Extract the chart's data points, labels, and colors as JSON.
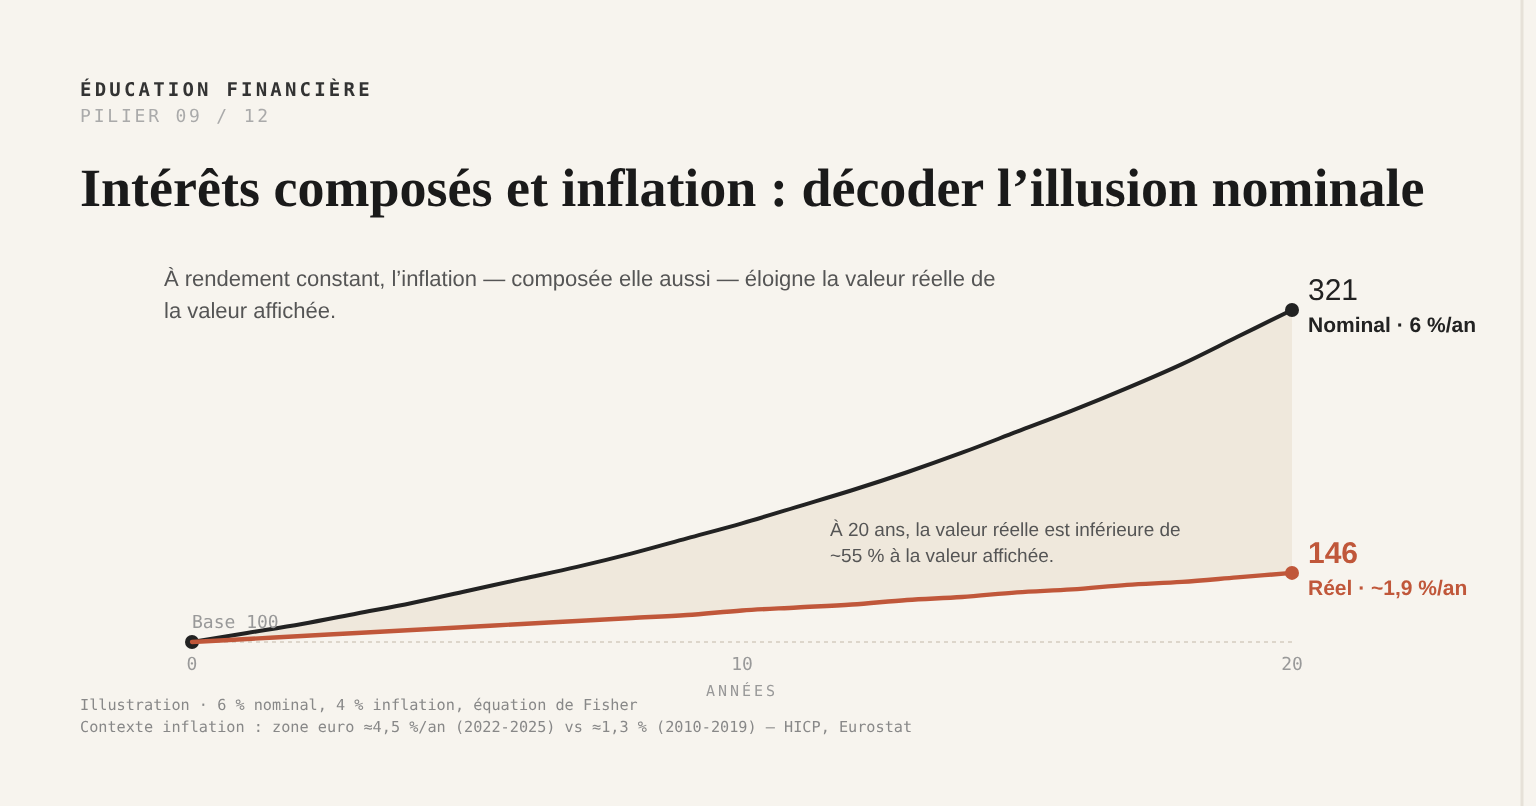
{
  "chart_data": {
    "type": "line",
    "title": "Intérêts composés et inflation : décoder l’illusion nominale",
    "subtitle": "À rendement constant, l’inflation — composée elle aussi — éloigne la valeur réelle de la valeur affichée.",
    "xlabel": "ANNÉES",
    "x": [
      0,
      1,
      2,
      3,
      4,
      5,
      6,
      7,
      8,
      9,
      10,
      11,
      12,
      13,
      14,
      15,
      16,
      17,
      18,
      19,
      20
    ],
    "series": [
      {
        "name": "Nominal · 6 %/an",
        "color": "#222222",
        "values": [
          100,
          106,
          112,
          119,
          126,
          134,
          142,
          150,
          159,
          169,
          179,
          190,
          201,
          213,
          226,
          240,
          254,
          269,
          285,
          303,
          321
        ],
        "lower": [
          100,
          102,
          104,
          106,
          108,
          110,
          112,
          114,
          116,
          118,
          121,
          123,
          125,
          128,
          130,
          133,
          135,
          138,
          140,
          143,
          146
        ],
        "upper": [
          100,
          106,
          112,
          119,
          126,
          134,
          142,
          150,
          159,
          169,
          179,
          190,
          201,
          213,
          226,
          240,
          254,
          269,
          285,
          303,
          321
        ],
        "value_labels": [
          "Base 100",
          null,
          null,
          null,
          null,
          null,
          null,
          null,
          null,
          null,
          null,
          null,
          null,
          null,
          null,
          null,
          null,
          null,
          null,
          null,
          "321"
        ]
      },
      {
        "name": "Réel · ~1,9 %/an",
        "color": "#c0573a",
        "values": [
          100,
          102,
          104,
          106,
          108,
          110,
          112,
          114,
          116,
          118,
          121,
          123,
          125,
          128,
          130,
          133,
          135,
          138,
          140,
          143,
          146
        ],
        "value_labels": [
          null,
          null,
          null,
          null,
          null,
          null,
          null,
          null,
          null,
          null,
          null,
          null,
          null,
          null,
          null,
          null,
          null,
          null,
          null,
          null,
          "146"
        ]
      }
    ],
    "xlim": [
      0,
      20
    ],
    "xticks": [
      0,
      10,
      20
    ],
    "tick_labels": "x",
    "grid": false,
    "annotations": [
      "ÉDUCATION FINANCIÈRE",
      "PILIER 09 / 12",
      "À 20 ans, la valeur réelle est inférieure de ~55 % à la valeur affichée.",
      "Illustration · 6 % nominal, 4 % inflation, équation de Fisher",
      "Contexte inflation : zone euro ≈4,5 %/an (2022-2025) vs ≈1,3 % (2010-2019) — HICP, Eurostat"
    ]
  }
}
